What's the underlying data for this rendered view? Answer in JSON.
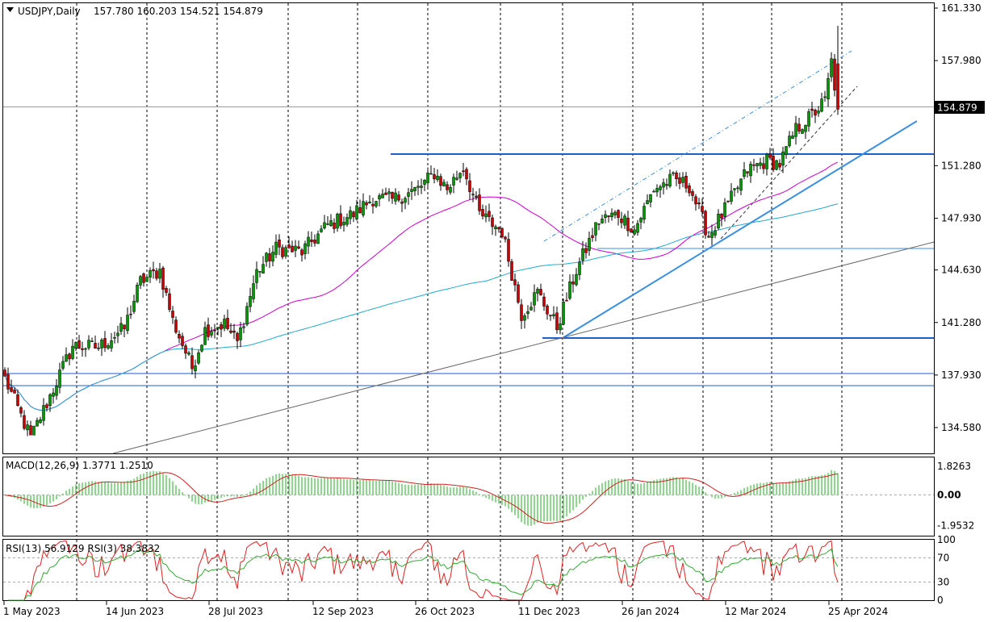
{
  "header": {
    "symbol_timeframe": "USDJPY,Daily",
    "ohlc": "157.780 160.203 154.521 154.879"
  },
  "colors": {
    "bull_candle": "#009900",
    "bear_candle": "#cc0000",
    "ma_fast": "#cc00cc",
    "ma_slow": "#22aacc",
    "trend_blue": "#3a8fe0",
    "hline_blue": "#1e5fc8",
    "macd_hist": "#66cc66",
    "macd_signal": "#cc2222",
    "rsi_slow": "#33aa33",
    "rsi_fast": "#dd2222"
  },
  "chart_data": {
    "type": "candlestick",
    "symbol": "USDJPY",
    "timeframe": "Daily",
    "last_price": "154.879",
    "price_axis_ticks": [
      "161.330",
      "157.980",
      "151.280",
      "147.930",
      "144.630",
      "141.280",
      "137.930",
      "134.580"
    ],
    "price_range": [
      132.7,
      161.5
    ],
    "date_axis_labels": [
      "1 May 2023",
      "14 Jun 2023",
      "28 Jul 2023",
      "12 Sep 2023",
      "26 Oct 2023",
      "11 Dec 2023",
      "26 Jan 2024",
      "12 Mar 2024",
      "25 Apr 2024"
    ],
    "series_anchors": [
      {
        "d": 0,
        "c": 137.7
      },
      {
        "d": 8,
        "c": 133.9
      },
      {
        "d": 14,
        "c": 136.6
      },
      {
        "d": 21,
        "c": 139.8
      },
      {
        "d": 29,
        "c": 139.7
      },
      {
        "d": 37,
        "c": 140.9
      },
      {
        "d": 42,
        "c": 143.9
      },
      {
        "d": 48,
        "c": 144.6
      },
      {
        "d": 52,
        "c": 141.4
      },
      {
        "d": 58,
        "c": 138.4
      },
      {
        "d": 62,
        "c": 140.8
      },
      {
        "d": 68,
        "c": 141.2
      },
      {
        "d": 72,
        "c": 140.0
      },
      {
        "d": 78,
        "c": 144.5
      },
      {
        "d": 84,
        "c": 146.0
      },
      {
        "d": 92,
        "c": 145.8
      },
      {
        "d": 100,
        "c": 147.5
      },
      {
        "d": 108,
        "c": 148.2
      },
      {
        "d": 114,
        "c": 149.2
      },
      {
        "d": 120,
        "c": 149.1
      },
      {
        "d": 128,
        "c": 149.8
      },
      {
        "d": 133,
        "c": 150.8
      },
      {
        "d": 137,
        "c": 149.8
      },
      {
        "d": 142,
        "c": 151.2
      },
      {
        "d": 147,
        "c": 148.2
      },
      {
        "d": 154,
        "c": 147.1
      },
      {
        "d": 160,
        "c": 141.8
      },
      {
        "d": 165,
        "c": 143.2
      },
      {
        "d": 171,
        "c": 141.0
      },
      {
        "d": 177,
        "c": 144.6
      },
      {
        "d": 184,
        "c": 147.8
      },
      {
        "d": 190,
        "c": 148.2
      },
      {
        "d": 195,
        "c": 147.2
      },
      {
        "d": 201,
        "c": 149.8
      },
      {
        "d": 207,
        "c": 150.4
      },
      {
        "d": 212,
        "c": 150.0
      },
      {
        "d": 218,
        "c": 146.8
      },
      {
        "d": 224,
        "c": 148.8
      },
      {
        "d": 230,
        "c": 151.0
      },
      {
        "d": 236,
        "c": 151.6
      },
      {
        "d": 240,
        "c": 151.4
      },
      {
        "d": 245,
        "c": 153.6
      },
      {
        "d": 250,
        "c": 154.5
      },
      {
        "d": 254,
        "c": 155.4
      },
      {
        "d": 256,
        "c": 157.9
      },
      {
        "d": 258,
        "c": 154.879
      }
    ],
    "indicators": {
      "macd": {
        "label": "MACD(12,26,9) 1.3771 1.2510",
        "axis_ticks": [
          "1.8263",
          "0.00",
          "-1.9532"
        ],
        "range": [
          -2.6,
          2.4
        ]
      },
      "rsi": {
        "label": "RSI(13) 56.9129 RSI(3) 38.3832",
        "axis_ticks": [
          "100",
          "70",
          "30",
          "0"
        ],
        "range": [
          0,
          100
        ]
      }
    }
  }
}
